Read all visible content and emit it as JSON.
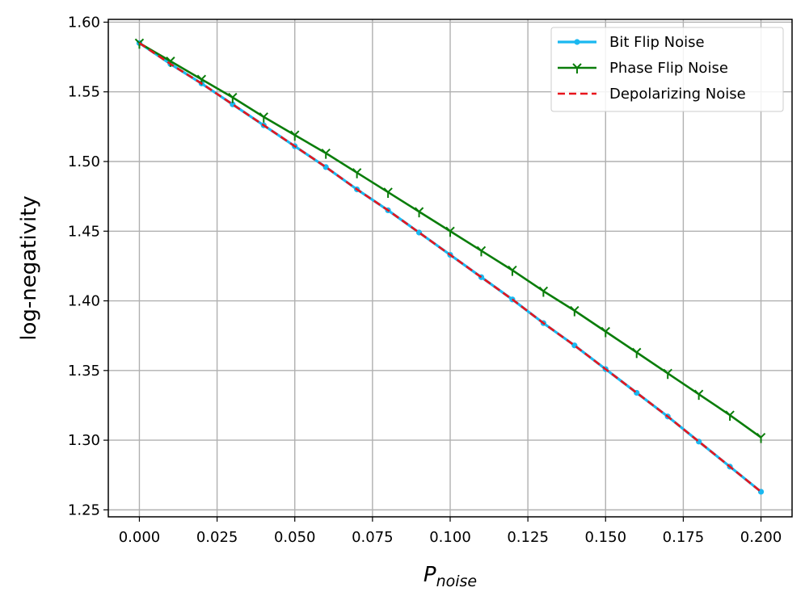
{
  "chart_data": {
    "type": "line",
    "xlabel": "P",
    "xlabel_subscript": "noise",
    "ylabel": "log-negativity",
    "xlim": [
      -0.01,
      0.21
    ],
    "ylim": [
      1.245,
      1.602
    ],
    "grid": true,
    "legend_position": "top-right",
    "x_ticks": [
      0.0,
      0.025,
      0.05,
      0.075,
      0.1,
      0.125,
      0.15,
      0.175,
      0.2
    ],
    "x_tick_labels": [
      "0.000",
      "0.025",
      "0.050",
      "0.075",
      "0.100",
      "0.125",
      "0.150",
      "0.175",
      "0.200"
    ],
    "y_ticks": [
      1.25,
      1.3,
      1.35,
      1.4,
      1.45,
      1.5,
      1.55,
      1.6
    ],
    "y_tick_labels": [
      "1.25",
      "1.30",
      "1.35",
      "1.40",
      "1.45",
      "1.50",
      "1.55",
      "1.60"
    ],
    "x": [
      0.0,
      0.01,
      0.02,
      0.03,
      0.04,
      0.05,
      0.06,
      0.07,
      0.08,
      0.09,
      0.1,
      0.11,
      0.12,
      0.13,
      0.14,
      0.15,
      0.16,
      0.17,
      0.18,
      0.19,
      0.2
    ],
    "series": [
      {
        "name": "Bit Flip Noise",
        "color": "#1ab8f0",
        "line_style": "solid",
        "marker": "circle",
        "values": [
          1.585,
          1.57,
          1.556,
          1.541,
          1.526,
          1.511,
          1.496,
          1.48,
          1.465,
          1.449,
          1.433,
          1.417,
          1.401,
          1.384,
          1.368,
          1.351,
          1.334,
          1.317,
          1.299,
          1.281,
          1.263
        ]
      },
      {
        "name": "Phase Flip Noise",
        "color": "#0a7d0a",
        "line_style": "solid",
        "marker": "tri-down",
        "values": [
          1.585,
          1.572,
          1.559,
          1.546,
          1.532,
          1.519,
          1.506,
          1.492,
          1.478,
          1.464,
          1.45,
          1.436,
          1.422,
          1.407,
          1.393,
          1.378,
          1.363,
          1.348,
          1.333,
          1.318,
          1.302
        ]
      },
      {
        "name": "Depolarizing Noise",
        "color": "#e8141c",
        "line_style": "dashed",
        "marker": "none",
        "values": [
          1.585,
          1.57,
          1.556,
          1.541,
          1.526,
          1.511,
          1.496,
          1.48,
          1.465,
          1.449,
          1.433,
          1.417,
          1.401,
          1.384,
          1.368,
          1.351,
          1.334,
          1.317,
          1.299,
          1.281,
          1.263
        ]
      }
    ]
  }
}
